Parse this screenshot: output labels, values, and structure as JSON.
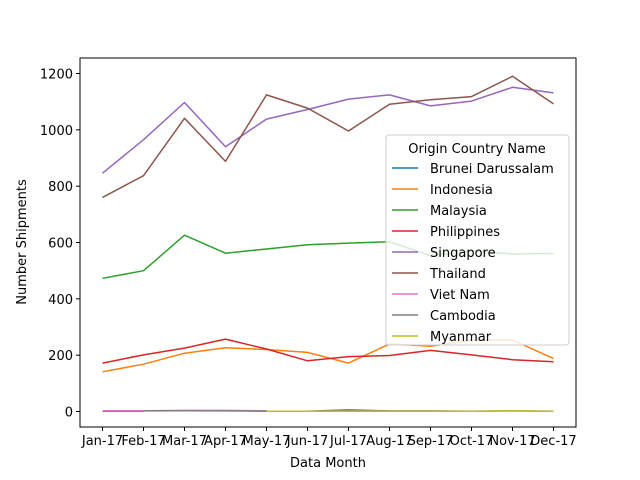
{
  "chart_data": {
    "type": "line",
    "title": "",
    "xlabel": "Data Month",
    "ylabel": "Number Shipments",
    "categories": [
      "Jan-17",
      "Feb-17",
      "Mar-17",
      "Apr-17",
      "May-17",
      "Jun-17",
      "Jul-17",
      "Aug-17",
      "Sep-17",
      "Oct-17",
      "Nov-17",
      "Dec-17"
    ],
    "ylim": [
      -55,
      1255
    ],
    "yticks": [
      0,
      200,
      400,
      600,
      800,
      1000,
      1200
    ],
    "grid": false,
    "legend": {
      "title": "Origin Country Name",
      "placement": "center-right"
    },
    "series": [
      {
        "name": "Brunei Darussalam",
        "color": "#1f77b4",
        "values": [
          1,
          1,
          null,
          null,
          null,
          null,
          null,
          null,
          null,
          null,
          null,
          null
        ]
      },
      {
        "name": "Indonesia",
        "color": "#ff7f0e",
        "values": [
          141,
          168,
          207,
          226,
          220,
          210,
          172,
          240,
          232,
          254,
          254,
          188
        ]
      },
      {
        "name": "Malaysia",
        "color": "#2ca02c",
        "values": [
          473,
          500,
          626,
          562,
          577,
          592,
          598,
          603,
          553,
          570,
          559,
          561
        ]
      },
      {
        "name": "Philippines",
        "color": "#d62728",
        "values": [
          172,
          201,
          225,
          257,
          222,
          180,
          195,
          199,
          217,
          201,
          184,
          177
        ]
      },
      {
        "name": "Singapore",
        "color": "#9467bd",
        "values": [
          846,
          965,
          1097,
          940,
          1038,
          1072,
          1109,
          1124,
          1085,
          1102,
          1151,
          1131
        ]
      },
      {
        "name": "Thailand",
        "color": "#8c564b",
        "values": [
          760,
          837,
          1041,
          888,
          1124,
          1077,
          996,
          1091,
          1107,
          1118,
          1190,
          1092
        ]
      },
      {
        "name": "Viet Nam",
        "color": "#e377c2",
        "values": [
          3,
          3,
          4,
          4,
          3,
          null,
          null,
          null,
          null,
          null,
          null,
          null
        ]
      },
      {
        "name": "Cambodia",
        "color": "#7f7f7f",
        "values": [
          null,
          2,
          3,
          2,
          1,
          1,
          6,
          2,
          2,
          1,
          2,
          1
        ]
      },
      {
        "name": "Myanmar",
        "color": "#bcbd22",
        "values": [
          null,
          null,
          null,
          null,
          1,
          1,
          1,
          1,
          1,
          1,
          2,
          1
        ]
      }
    ]
  }
}
